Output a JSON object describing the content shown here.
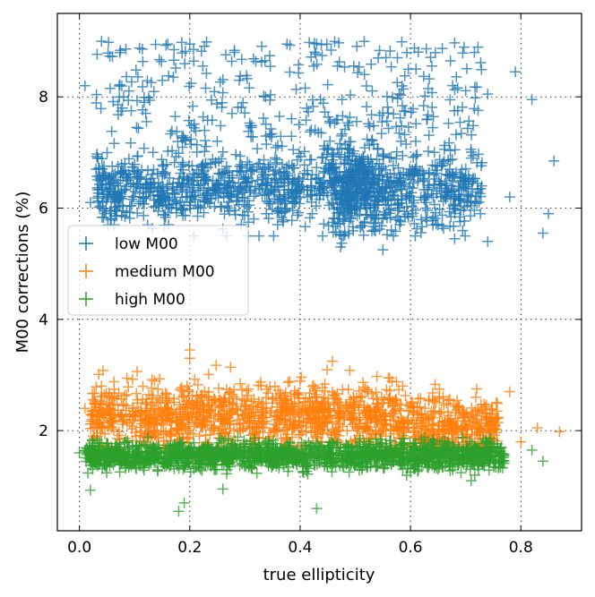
{
  "chart_data": {
    "type": "scatter",
    "title": "",
    "xlabel": "true ellipticity",
    "ylabel": "M00 corrections (%)",
    "xlim": [
      -0.04,
      0.91
    ],
    "ylim": [
      0.2,
      9.5
    ],
    "xticks": [
      0.0,
      0.2,
      0.4,
      0.6,
      0.8
    ],
    "xtick_labels": [
      "0.0",
      "0.2",
      "0.4",
      "0.6",
      "0.8"
    ],
    "yticks": [
      2,
      4,
      6,
      8
    ],
    "ytick_labels": [
      "2",
      "4",
      "6",
      "8"
    ],
    "grid": "dotted",
    "marker": "+",
    "legend_position": "center-left",
    "series": [
      {
        "name": "low M00",
        "color": "#1f77b4",
        "summary": {
          "x_range": [
            0.0,
            0.87
          ],
          "y_center": 6.3,
          "y_spread_low": 5.3,
          "y_spread_high": 9.0,
          "dense_peak_x": 0.54,
          "dense_peak_y": 6.4
        },
        "points": [
          {
            "x": 0.04,
            "y": 9.0
          },
          {
            "x": 0.16,
            "y": 8.95
          },
          {
            "x": 0.2,
            "y": 8.95
          },
          {
            "x": 0.47,
            "y": 8.97
          },
          {
            "x": 0.68,
            "y": 8.97
          },
          {
            "x": 0.86,
            "y": 6.85
          },
          {
            "x": 0.84,
            "y": 5.55
          },
          {
            "x": 0.79,
            "y": 8.45
          },
          {
            "x": 0.74,
            "y": 8.05
          },
          {
            "x": 0.82,
            "y": 7.95
          },
          {
            "x": 0.63,
            "y": 7.6
          },
          {
            "x": 0.55,
            "y": 5.25
          },
          {
            "x": 0.01,
            "y": 8.2
          },
          {
            "x": 0.08,
            "y": 8.0
          },
          {
            "x": 0.03,
            "y": 6.7
          },
          {
            "x": 0.02,
            "y": 6.1
          },
          {
            "x": 0.68,
            "y": 5.45
          },
          {
            "x": 0.74,
            "y": 5.4
          },
          {
            "x": 0.85,
            "y": 5.9
          },
          {
            "x": 0.71,
            "y": 6.9
          },
          {
            "x": 0.78,
            "y": 6.2
          },
          {
            "x": 0.65,
            "y": 5.7
          }
        ]
      },
      {
        "name": "medium M00",
        "color": "#ff7f0e",
        "summary": {
          "x_range": [
            0.01,
            0.87
          ],
          "y_center": 2.25,
          "y_spread_low": 1.7,
          "y_spread_high": 3.5
        },
        "points": [
          {
            "x": 0.2,
            "y": 3.45
          },
          {
            "x": 0.2,
            "y": 3.3
          },
          {
            "x": 0.87,
            "y": 1.98
          },
          {
            "x": 0.83,
            "y": 2.05
          },
          {
            "x": 0.01,
            "y": 2.4
          },
          {
            "x": 0.72,
            "y": 2.75
          },
          {
            "x": 0.78,
            "y": 2.7
          },
          {
            "x": 0.56,
            "y": 2.95
          },
          {
            "x": 0.04,
            "y": 2.8
          },
          {
            "x": 0.8,
            "y": 1.8
          }
        ]
      },
      {
        "name": "high M00",
        "color": "#2ca02c",
        "summary": {
          "x_range": [
            0.0,
            0.84
          ],
          "y_center": 1.55,
          "y_spread_low": 0.55,
          "y_spread_high": 1.95
        },
        "points": [
          {
            "x": 0.18,
            "y": 0.55
          },
          {
            "x": 0.43,
            "y": 0.6
          },
          {
            "x": 0.19,
            "y": 0.7
          },
          {
            "x": 0.02,
            "y": 0.93
          },
          {
            "x": 0.82,
            "y": 1.65
          },
          {
            "x": 0.84,
            "y": 1.45
          },
          {
            "x": 0.0,
            "y": 1.6
          },
          {
            "x": 0.71,
            "y": 1.1
          },
          {
            "x": 0.26,
            "y": 0.95
          }
        ]
      }
    ]
  }
}
